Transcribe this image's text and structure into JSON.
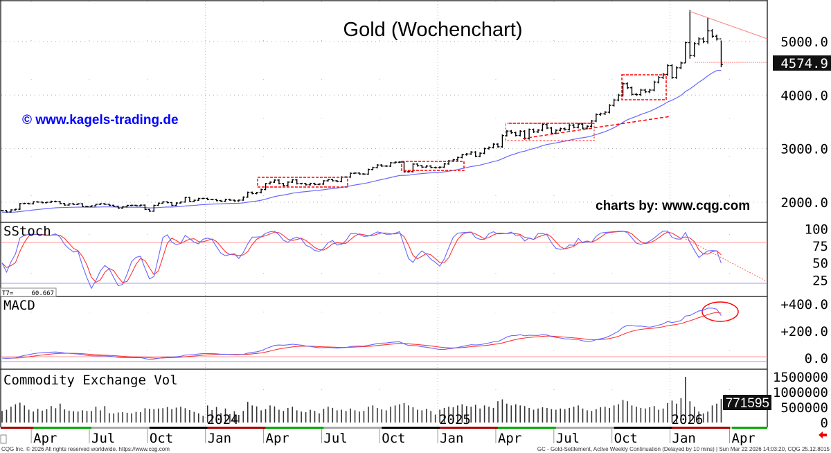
{
  "chart_data": {
    "type": "ohlc",
    "title": "Gold (Wochenchart)",
    "watermark": "© www.kagels-trading.de",
    "credit": "charts by: www.cqg.com",
    "price_axis": {
      "ticks": [
        "5000.0",
        "4000.0",
        "3000.0",
        "2000.0"
      ],
      "tick_values": [
        5000,
        4000,
        3000,
        2000
      ],
      "last_price_label": "4574.9",
      "last_price": 4574.9
    },
    "weekly_close_by_month": {
      "2023-02": [
        1842,
        1817
      ],
      "2023-03": [
        1856,
        1868,
        1973,
        1978,
        1969
      ],
      "2023-04": [
        2006,
        2002,
        1990,
        1999
      ],
      "2023-05": [
        2016,
        2011,
        1975,
        1946
      ],
      "2023-06": [
        1969,
        1958,
        1970,
        1921,
        1919
      ],
      "2023-07": [
        1931,
        1960,
        1970,
        1960
      ],
      "2023-08": [
        1942,
        1924,
        1889,
        1915
      ],
      "2023-09": [
        1940,
        1942,
        1933,
        1945,
        1866
      ],
      "2023-10": [
        1832,
        1941,
        1981,
        2006
      ],
      "2023-11": [
        1992,
        1940,
        1985,
        2003
      ],
      "2023-12": [
        2089,
        2014,
        2036,
        2069,
        2071
      ],
      "2024-01": [
        2049,
        2052,
        2029,
        2018
      ],
      "2024-02": [
        2053,
        2038,
        2024,
        2039
      ],
      "2024-03": [
        2095,
        2185,
        2161,
        2178,
        2238
      ],
      "2024-04": [
        2345,
        2374,
        2413,
        2347
      ],
      "2024-05": [
        2310,
        2375,
        2417,
        2345,
        2348
      ],
      "2024-06": [
        2325,
        2349,
        2331,
        2339
      ],
      "2024-07": [
        2399,
        2421,
        2400,
        2386
      ],
      "2024-08": [
        2470,
        2470,
        2540,
        2544,
        2527
      ],
      "2024-09": [
        2524,
        2611,
        2646,
        2694
      ],
      "2024-10": [
        2675,
        2674,
        2735,
        2747
      ],
      "2024-11": [
        2749,
        2568,
        2570,
        2712,
        2680
      ],
      "2024-12": [
        2655,
        2675,
        2648,
        2645
      ],
      "2025-01": [
        2654,
        2715,
        2771,
        2791,
        2835
      ],
      "2025-02": [
        2886,
        2900,
        2936,
        2858
      ],
      "2025-03": [
        2914,
        3001,
        3022,
        3084
      ],
      "2025-04": [
        3035,
        3245,
        3328,
        3298
      ],
      "2025-05": [
        3247,
        3325,
        3187,
        3355,
        3313
      ],
      "2025-06": [
        3346,
        3452,
        3385,
        3287
      ],
      "2025-07": [
        3343,
        3372,
        3358,
        3439
      ],
      "2025-08": [
        3399,
        3458,
        3382,
        3418,
        3516
      ],
      "2025-09": [
        3637,
        3650,
        3680,
        3809
      ],
      "2025-10": [
        3908,
        4000,
        4213,
        4137,
        4014
      ],
      "2025-11": [
        4009,
        4094,
        4061,
        4094
      ],
      "2025-12": [
        4243,
        4328,
        4387,
        4552
      ],
      "2026-01": [
        4330,
        4510,
        4600,
        4980,
        4740
      ],
      "2026-02": [
        4960,
        5050,
        5000,
        5200
      ],
      "2026-03": [
        5100,
        5050,
        4575
      ]
    },
    "notable_ranges": [
      {
        "month": "2026-01",
        "week": 5,
        "high": 5590,
        "low": 4680
      },
      {
        "month": "2026-01",
        "week": 4,
        "high": 5000,
        "low": 4600
      },
      {
        "month": "2026-02",
        "week": 4,
        "high": 5440,
        "low": 4960
      },
      {
        "month": "2026-03",
        "week": 3,
        "high": 5020,
        "low": 4520
      }
    ],
    "volume_by_month": {
      "2023-02": [
        380000,
        420000
      ],
      "2023-03": [
        520000,
        600000,
        650000,
        560000,
        420000
      ],
      "2023-04": [
        360000,
        450000,
        390000,
        440000
      ],
      "2023-05": [
        540000,
        470000,
        620000,
        430000
      ],
      "2023-06": [
        390000,
        370000,
        360000,
        400000,
        380000
      ],
      "2023-07": [
        380000,
        520000,
        400000,
        540000
      ],
      "2023-08": [
        310000,
        300000,
        330000,
        340000
      ],
      "2023-09": [
        320000,
        300000,
        350000,
        340000,
        470000
      ],
      "2023-10": [
        450000,
        440000,
        460000,
        470000
      ],
      "2023-11": [
        510000,
        440000,
        490000,
        520000
      ],
      "2023-12": [
        470000,
        410000,
        350000,
        300000,
        220000
      ],
      "2024-01": [
        560000,
        410000,
        510000,
        310000
      ],
      "2024-02": [
        460000,
        280000,
        370000,
        250000
      ],
      "2024-03": [
        380000,
        680000,
        560000,
        530000,
        400000
      ],
      "2024-04": [
        440000,
        560000,
        530000,
        420000
      ],
      "2024-05": [
        380000,
        480000,
        520000,
        400000,
        360000
      ],
      "2024-06": [
        340000,
        420000,
        380000,
        300000
      ],
      "2024-07": [
        450000,
        520000,
        480000,
        400000
      ],
      "2024-08": [
        420000,
        380000,
        460000,
        400000,
        360000
      ],
      "2024-09": [
        380000,
        520000,
        560000,
        480000
      ],
      "2024-10": [
        430000,
        400000,
        520000,
        560000
      ],
      "2024-11": [
        600000,
        640000,
        560000,
        500000,
        420000
      ],
      "2024-12": [
        400000,
        450000,
        380000,
        260000
      ],
      "2025-01": [
        420000,
        480000,
        520000,
        500000,
        560000
      ],
      "2025-02": [
        600000,
        540000,
        520000,
        580000
      ],
      "2025-03": [
        460000,
        560000,
        520000,
        480000
      ],
      "2025-04": [
        700000,
        760000,
        620000,
        560000
      ],
      "2025-05": [
        600000,
        560000,
        540000,
        480000,
        420000
      ],
      "2025-06": [
        460000,
        500000,
        480000,
        440000
      ],
      "2025-07": [
        420000,
        460000,
        440000,
        480000
      ],
      "2025-08": [
        520000,
        560000,
        460000,
        400000,
        380000
      ],
      "2025-09": [
        440000,
        500000,
        520000,
        480000
      ],
      "2025-10": [
        560000,
        600000,
        740000,
        700000,
        560000
      ],
      "2025-11": [
        520000,
        480000,
        460000,
        500000
      ],
      "2025-12": [
        540000,
        420000,
        460000,
        640000
      ],
      "2026-01": [
        720000,
        620000,
        800000,
        1500000,
        700000
      ],
      "2026-02": [
        520000,
        360000,
        300000,
        360000
      ],
      "2026-03": [
        560000,
        620000,
        771595
      ]
    },
    "volume_axis": {
      "ticks": [
        "1500000",
        "1000000",
        "500000",
        "0"
      ],
      "tick_values": [
        1500000,
        1000000,
        500000,
        0
      ],
      "last_label": "771595"
    },
    "stoch": {
      "label": "SStoch",
      "ticks": [
        "100",
        "75",
        "50",
        "25"
      ],
      "tick_values": [
        100,
        75,
        50,
        25
      ],
      "readout_label": "T7=",
      "readout_value": "60.667",
      "upper_line": 80,
      "lower_line": 20
    },
    "macd": {
      "label": "MACD",
      "ticks": [
        "+400.0",
        "+200.0",
        "0.0"
      ],
      "tick_values": [
        400,
        200,
        0
      ]
    },
    "volume_label": "Commodity Exchange Vol",
    "time_axis": {
      "month_labels": [
        {
          "month": "2023-04",
          "text": "Apr"
        },
        {
          "month": "2023-07",
          "text": "Jul"
        },
        {
          "month": "2023-10",
          "text": "Oct"
        },
        {
          "month": "2024-01",
          "text": "Jan"
        },
        {
          "month": "2024-04",
          "text": "Apr"
        },
        {
          "month": "2024-07",
          "text": "Jul"
        },
        {
          "month": "2024-10",
          "text": "Oct"
        },
        {
          "month": "2025-01",
          "text": "Jan"
        },
        {
          "month": "2025-04",
          "text": "Apr"
        },
        {
          "month": "2025-07",
          "text": "Jul"
        },
        {
          "month": "2025-10",
          "text": "Oct"
        },
        {
          "month": "2026-01",
          "text": "Jan"
        },
        {
          "month": "2026-04",
          "text": "Apr"
        }
      ],
      "year_labels": [
        {
          "month": "2024-01",
          "text": "2024"
        },
        {
          "month": "2025-01",
          "text": "2025"
        },
        {
          "month": "2026-01",
          "text": "2026"
        }
      ]
    },
    "colors": {
      "bars": "#000000",
      "moving_average": "#6666ff",
      "signal": "#ff3333",
      "annotation": "#ff0000",
      "watermark": "#0000ff",
      "tag_bg": "#111111"
    }
  },
  "footer": {
    "left": "CQG Inc. © 2026 All rights reserved worldwide. https://www.cqg.com",
    "right": "GC - Gold-Settlement, Active Weekly Continuation (Delayed by 10 mins) | Sun Mar 22 2026 14:03:20, CQG 25.12.8015"
  }
}
